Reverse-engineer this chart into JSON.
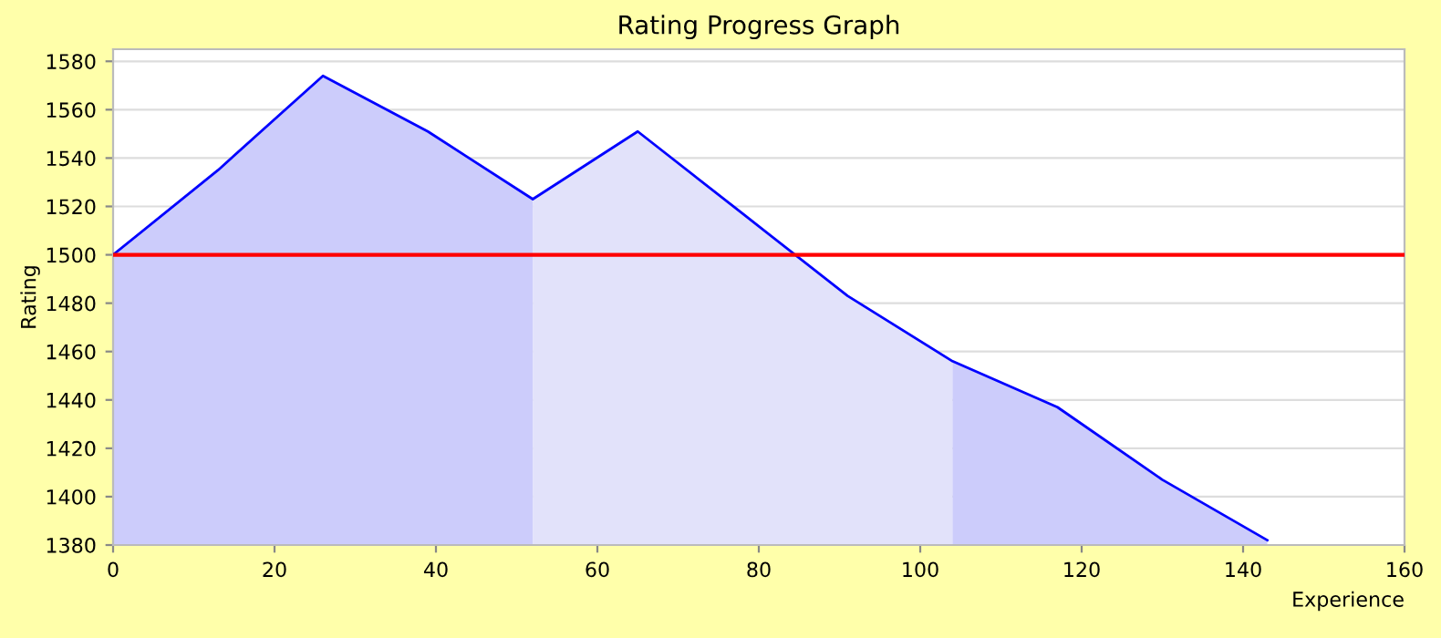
{
  "chart_data": {
    "type": "line",
    "title": "Rating Progress Graph",
    "xlabel": "Experience",
    "ylabel": "Rating",
    "series": [
      {
        "type": "area",
        "color": "#ccccfb",
        "x": [
          0,
          13,
          26,
          39,
          52
        ],
        "values": [
          1500,
          1535,
          1574,
          1551,
          1523
        ]
      },
      {
        "type": "area",
        "color": "#e2e2fa",
        "x": [
          52,
          65,
          78,
          91,
          104
        ],
        "values": [
          1523,
          1551,
          1517,
          1483,
          1456
        ]
      },
      {
        "type": "area",
        "color": "#ccccfb",
        "x": [
          104,
          117,
          130,
          143
        ],
        "values": [
          1456,
          1437,
          1407,
          1382
        ]
      },
      {
        "color": "#0000ff",
        "x": [
          0,
          13,
          26,
          39,
          52,
          65,
          78,
          91,
          104,
          117,
          130,
          143
        ],
        "values": [
          1500,
          1535,
          1574,
          1551,
          1523,
          1551,
          1517,
          1483,
          1456,
          1437,
          1407,
          1382
        ]
      }
    ],
    "ref_lines": [
      {
        "axis": "y",
        "value": 1500,
        "color": "#ff0000"
      }
    ],
    "xlim": [
      0,
      160
    ],
    "xticks": [
      0,
      20,
      40,
      60,
      80,
      100,
      120,
      140,
      160
    ],
    "ylim": [
      1380,
      1585
    ],
    "yticks": [
      1380,
      1400,
      1420,
      1440,
      1460,
      1480,
      1500,
      1520,
      1540,
      1560,
      1580
    ],
    "grid": "y"
  }
}
